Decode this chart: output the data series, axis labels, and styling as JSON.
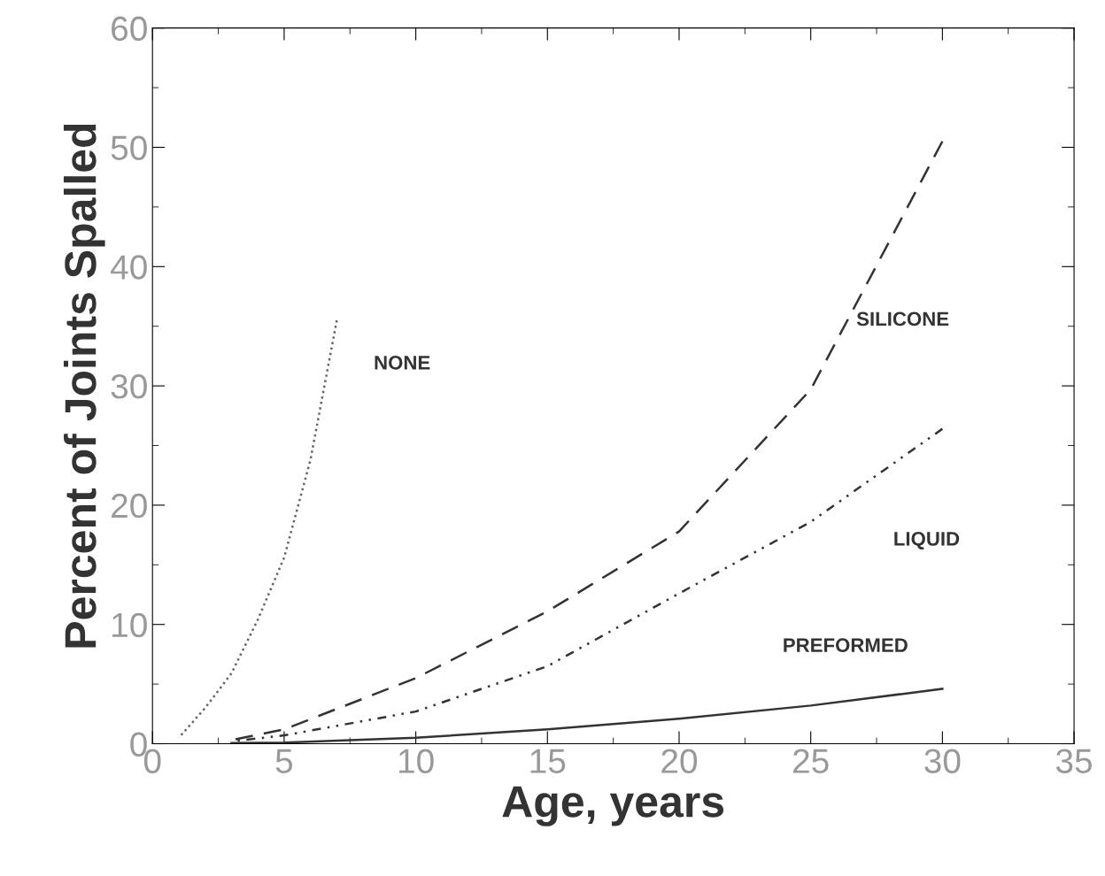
{
  "chart_data": {
    "type": "line",
    "xlabel": "Age, years",
    "ylabel": "Percent of Joints Spalled",
    "xlim": [
      0,
      35
    ],
    "xticks": [
      0,
      5,
      10,
      15,
      20,
      25,
      30,
      35
    ],
    "ylim": [
      0,
      60
    ],
    "yticks": [
      0,
      10,
      20,
      30,
      40,
      50,
      60
    ],
    "grid": false,
    "legend": false,
    "marker": "none",
    "series": [
      {
        "name": "NONE",
        "color": "#666666",
        "line_style": "dotted",
        "x": [
          1,
          2,
          3,
          4,
          5,
          6,
          7
        ],
        "values": [
          0.5,
          3.0,
          5.9,
          10.4,
          15.6,
          23.8,
          35.5
        ]
      },
      {
        "name": "SILICONE",
        "color": "#333333",
        "line_style": "dashed",
        "x": [
          3,
          5,
          10,
          15,
          20,
          25,
          30
        ],
        "values": [
          0.3,
          1.2,
          5.5,
          11.1,
          17.8,
          29.7,
          50.5
        ]
      },
      {
        "name": "LIQUID",
        "color": "#333333",
        "line_style": "dashdotdot",
        "x": [
          3,
          5,
          10,
          15,
          20,
          25,
          30
        ],
        "values": [
          0.2,
          0.7,
          2.7,
          6.5,
          12.6,
          18.6,
          26.4
        ]
      },
      {
        "name": "PREFORMED",
        "color": "#333333",
        "line_style": "solid",
        "x": [
          3,
          5,
          10,
          15,
          20,
          25,
          30
        ],
        "values": [
          0.05,
          0.1,
          0.5,
          1.2,
          2.1,
          3.2,
          4.6
        ]
      }
    ]
  }
}
